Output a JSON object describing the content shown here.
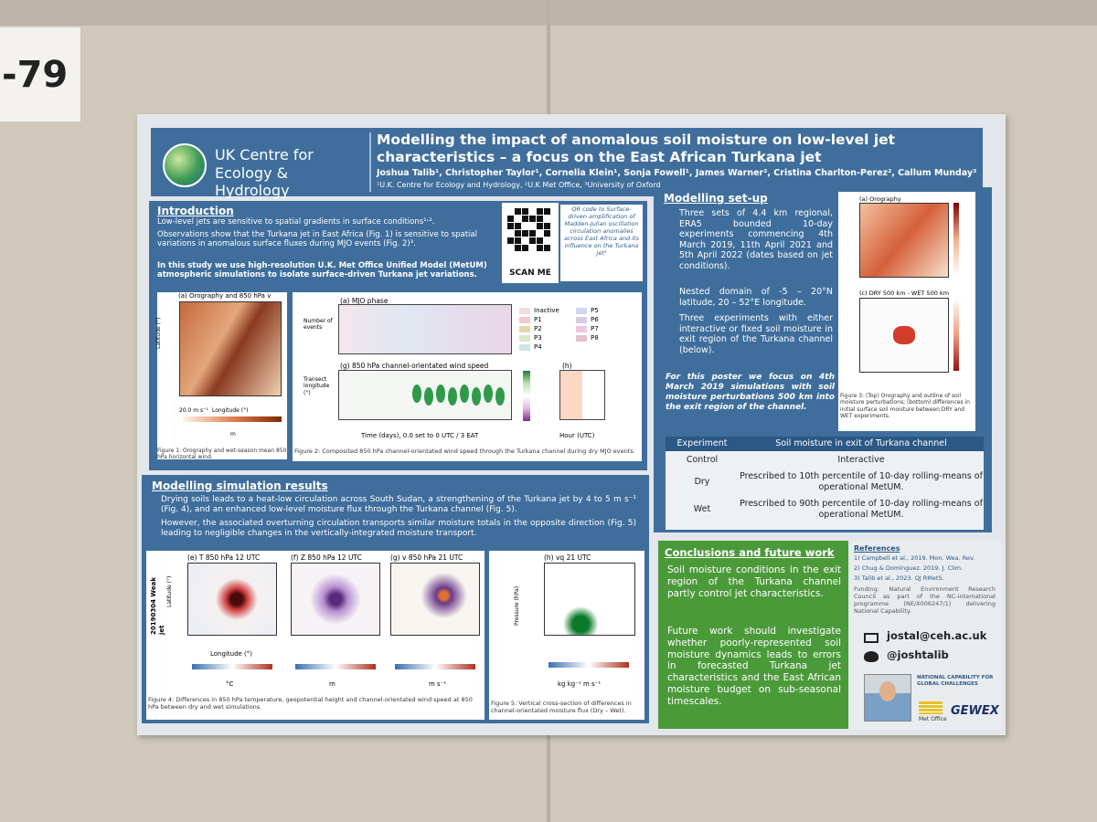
{
  "board_label": "-79",
  "header": {
    "logo_text": "UK Centre for Ecology & Hydrology",
    "title": "Modelling the impact of anomalous soil moisture on low-level jet characteristics – a focus on the East African Turkana jet",
    "authors": "Joshua Talib¹, Christopher Taylor¹, Cornelia Klein¹, Sonja Fowell¹, James Warner², Cristina Charlton-Perez², Callum Munday³",
    "affiliations": "¹U.K. Centre for Ecology and Hydrology, ²U.K Met Office, ³University of Oxford"
  },
  "introduction": {
    "heading": "Introduction",
    "bullets": [
      "Low-level jets are sensitive to spatial gradients in surface conditions¹˒².",
      "Observations show that the Turkana jet in East Africa (Fig. 1) is sensitive to spatial variations in anomalous surface fluxes during MJO events (Fig. 2)³."
    ],
    "summary": "In this study we use high-resolution U.K. Met Office Unified Model (MetUM) atmospheric simulations to isolate surface-driven Turkana jet variations.",
    "qr_label": "SCAN ME",
    "qr_note": "QR code to Surface-driven amplification of Madden-Julian oscillation circulation anomalies across East Africa and its influence on the Turkana jet³"
  },
  "figure1": {
    "panel": "(a) Orography and 850 hPa v",
    "ylabel": "Latitude (°)",
    "xlabel": "Longitude (°)",
    "scale": "20.0 m s⁻¹",
    "unit": "m",
    "caption": "Figure 1: Orography and wet-season mean 850 hPa horizontal wind."
  },
  "figure2": {
    "panel_a": "(a) MJO phase",
    "ylabel_a": "Number of events",
    "legend": [
      "Inactive",
      "P1",
      "P2",
      "P3",
      "P4",
      "P5",
      "P6",
      "P7",
      "P8"
    ],
    "panel_g": "(g) 850 hPa channel-orientated wind speed",
    "ylabel_g": "Transect longitude (°)",
    "panel_h": "(h)",
    "xlabel": "Time (days), 0.0 set to 0 UTC / 3 EAT",
    "xlabel_h": "Hour (UTC)",
    "caption": "Figure 2: Composited 850 hPa channel-orientated wind speed through the Turkana channel during dry MJO events."
  },
  "setup": {
    "heading": "Modelling set-up",
    "bullets": [
      "Three sets of 4.4 km regional, ERA5 bounded 10-day experiments commencing 4th March 2019, 11th April 2021 and 5th April 2022 (dates based on jet conditions).",
      "Nested domain of -5 – 20°N latitude, 20 – 52°E longitude.",
      "Three experiments with either interactive or fixed soil moisture in exit region of the Turkana channel (below)."
    ],
    "focus": "For this poster we focus on 4th March 2019 simulations with soil moisture perturbations 500 km into the exit region of the channel.",
    "table": {
      "header": [
        "Experiment",
        "Soil moisture in exit of Turkana channel"
      ],
      "rows": [
        [
          "Control",
          "Interactive"
        ],
        [
          "Dry",
          "Prescribed to 10th percentile of 10-day rolling-means of operational MetUM."
        ],
        [
          "Wet",
          "Prescribed to 90th percentile of 10-day rolling-means of operational MetUM."
        ]
      ]
    }
  },
  "figure3": {
    "panel_a": "(a) Orography",
    "panel_c": "(c) DRY 500 km - WET 500 km",
    "caption": "Figure 3: (Top) Orography and outline of soil moisture perturbations; (bottom) differences in initial surface soil moisture between DRY and WET experiments."
  },
  "results": {
    "heading": "Modelling simulation results",
    "bullets": [
      "Drying soils leads to a heat-low circulation across South Sudan, a strengthening of the Turkana jet by 4 to 5 m s⁻¹ (Fig. 4), and an enhanced low-level moisture flux through the Turkana channel (Fig. 5).",
      "However, the associated overturning circulation transports similar moisture totals in the opposite direction (Fig. 5) leading to negligible changes in the vertically-integrated moisture transport."
    ],
    "row_label": "20190304 Weak jet",
    "panels": [
      "(e) T 850 hPa 12 UTC",
      "(f) Z 850 hPa 12 UTC",
      "(g) v 850 hPa 21 UTC",
      "(h) vq 21 UTC"
    ],
    "units": [
      "°C",
      "m",
      "m s⁻¹",
      "kg kg⁻¹ m s⁻¹"
    ],
    "xlabel": "Longitude (°)",
    "ylabel": "Latitude (°)",
    "pressure_label": "Pressure (hPa)",
    "caption4": "Figure 4: Differences in 850 hPa temperature, geopotential height and channel-orientated wind speed at 850 hPa between dry and wet simulations.",
    "caption5": "Figure 5: Vertical cross-section of differences in channel-orientated moisture flux (Dry – Wet)."
  },
  "conclusions": {
    "heading": "Conclusions and future work",
    "paragraphs": [
      "Soil moisture conditions in the exit region of the Turkana channel partly control jet characteristics.",
      "Future work should investigate whether poorly-represented soil moisture dynamics leads to errors in forecasted Turkana jet characteristics and the East African moisture budget on sub-seasonal timescales."
    ]
  },
  "references": {
    "heading": "References",
    "items": [
      "1) Campbell et al., 2019. Mon. Wea. Rev.",
      "2) Chug & Dominguez. 2019. J. Clim.",
      "3) Talib et al., 2023. QJ RMetS."
    ],
    "funding": "Funding: Natural Environment Research Council as part of the NC-international programme (NE/X006247/1) delivering National Capability.",
    "email": "jostal@ceh.ac.uk",
    "twitter": "@joshtalib",
    "logos": [
      "NATIONAL CAPABILITY FOR GLOBAL CHALLENGES",
      "Met Office",
      "GEWEX"
    ]
  }
}
